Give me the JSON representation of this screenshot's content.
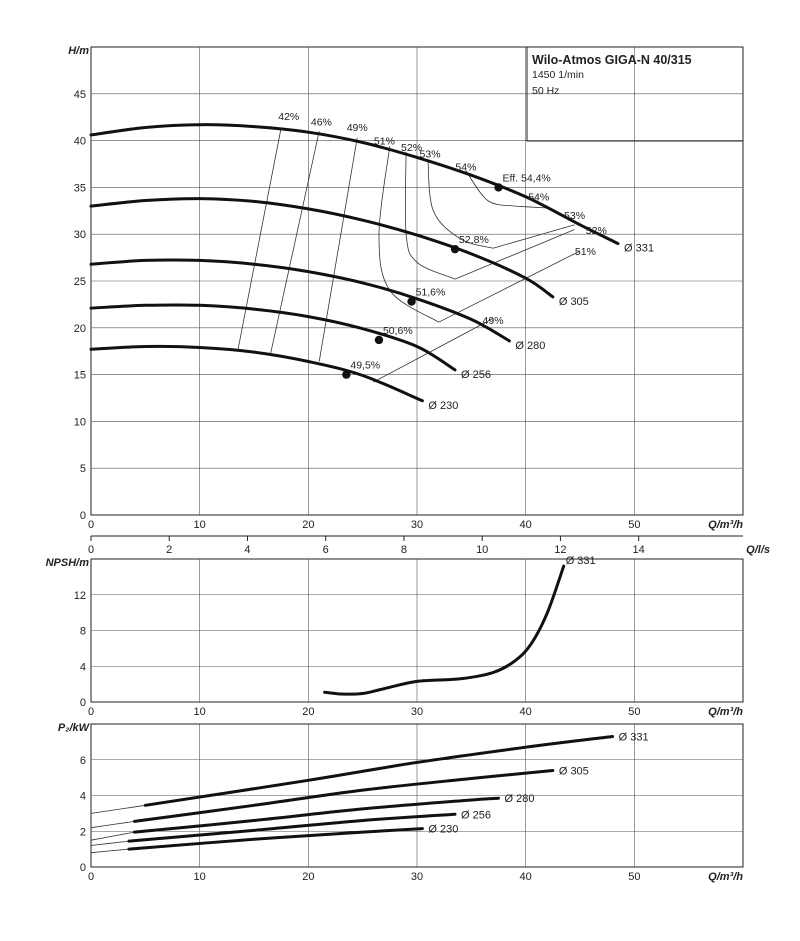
{
  "title_box": {
    "title": "Wilo-Atmos GIGA-N 40/315",
    "speed": "1450 1/min",
    "frequency": "50 Hz"
  },
  "axis_labels": {
    "head": "H/m",
    "flow": "Q/m³/h",
    "flow_ls": "Q/l/s",
    "npsh": "NPSH/m",
    "power": "P₂/kW"
  },
  "chart_data": [
    {
      "type": "line",
      "id": "head",
      "ylabel": "H/m",
      "xlabel": "Q/m³/h",
      "xlim": [
        0,
        60
      ],
      "ylim": [
        0,
        50
      ],
      "xticks": [
        0,
        10,
        20,
        30,
        40,
        50
      ],
      "yticks": [
        0,
        5,
        10,
        15,
        20,
        25,
        30,
        35,
        40,
        45
      ],
      "grid": true,
      "secondary_x": {
        "label": "Q/l/s",
        "lim": [
          0,
          16.667
        ],
        "ticks": [
          0,
          2,
          4,
          6,
          8,
          10,
          12,
          14
        ]
      },
      "series": [
        {
          "name": "Ø 331",
          "x": [
            0,
            5,
            10,
            15,
            20,
            25,
            30,
            35,
            40,
            45,
            48.5
          ],
          "y": [
            40.6,
            41.4,
            41.7,
            41.5,
            40.9,
            39.8,
            38.2,
            36.3,
            34.0,
            31.0,
            29.0
          ]
        },
        {
          "name": "Ø 305",
          "x": [
            0,
            5,
            10,
            15,
            20,
            25,
            30,
            35,
            40,
            42.5
          ],
          "y": [
            33.0,
            33.6,
            33.8,
            33.5,
            32.7,
            31.5,
            29.9,
            27.9,
            25.3,
            23.3
          ]
        },
        {
          "name": "Ø 280",
          "x": [
            0,
            5,
            10,
            15,
            20,
            25,
            30,
            35,
            38.5
          ],
          "y": [
            26.8,
            27.2,
            27.2,
            26.8,
            26.0,
            24.8,
            23.1,
            20.9,
            18.6
          ]
        },
        {
          "name": "Ø 256",
          "x": [
            0,
            5,
            10,
            15,
            20,
            25,
            30,
            33.5
          ],
          "y": [
            22.1,
            22.4,
            22.4,
            22.0,
            21.2,
            19.9,
            18.0,
            15.5
          ]
        },
        {
          "name": "Ø 230",
          "x": [
            0,
            5,
            10,
            15,
            20,
            25,
            30.5
          ],
          "y": [
            17.7,
            18.0,
            17.9,
            17.4,
            16.4,
            14.9,
            12.2
          ]
        }
      ],
      "best_efficiency_points": [
        {
          "label": "Eff. 54,4%",
          "x": 37.5,
          "y": 35.0
        },
        {
          "label": "52,8%",
          "x": 33.5,
          "y": 28.4
        },
        {
          "label": "51,6%",
          "x": 29.5,
          "y": 22.8
        },
        {
          "label": "50,6%",
          "x": 26.5,
          "y": 18.7
        },
        {
          "label": "49,5%",
          "x": 23.5,
          "y": 15.0
        }
      ],
      "efficiency_lines": [
        {
          "label": "42%",
          "x": [
            17.5,
            13.5
          ],
          "y": [
            41.4,
            17.5
          ]
        },
        {
          "label": "46%",
          "x": [
            21,
            16.5
          ],
          "y": [
            41.0,
            17.1
          ]
        },
        {
          "label": "49%",
          "x": [
            24.5,
            21
          ],
          "y": [
            40.3,
            16.4
          ]
        },
        {
          "label": "51%",
          "x": [
            27.5,
            26.5,
            27.5,
            32
          ],
          "y": [
            39.4,
            30,
            24,
            20.6
          ]
        },
        {
          "label": "52%",
          "x": [
            29,
            29,
            30,
            33.5
          ],
          "y": [
            38.8,
            30,
            27,
            25.2
          ]
        },
        {
          "label": "53%",
          "x": [
            31,
            31.5,
            34,
            37
          ],
          "y": [
            38.0,
            32.5,
            29.5,
            28.5
          ]
        },
        {
          "label": "54%",
          "x": [
            34.5,
            36.5,
            39
          ],
          "y": [
            36.8,
            33.6,
            33.0
          ]
        },
        {
          "label": "54%",
          "x": [
            39,
            42
          ],
          "y": [
            33.0,
            32.8
          ]
        },
        {
          "label": "53%",
          "x": [
            37,
            44.5
          ],
          "y": [
            28.5,
            31.0
          ]
        },
        {
          "label": "52%",
          "x": [
            33.5,
            44.5
          ],
          "y": [
            25.2,
            30.5
          ]
        },
        {
          "label": "51%",
          "x": [
            32,
            45
          ],
          "y": [
            20.6,
            28.2
          ]
        },
        {
          "label": "49%",
          "x": [
            26,
            37
          ],
          "y": [
            14.2,
            21.0
          ]
        }
      ],
      "efficiency_label_positions": [
        {
          "text": "42%",
          "x": 18.2,
          "y": 42.2
        },
        {
          "text": "46%",
          "x": 21.2,
          "y": 41.6
        },
        {
          "text": "49%",
          "x": 24.5,
          "y": 41.0
        },
        {
          "text": "51%",
          "x": 27.0,
          "y": 39.6
        },
        {
          "text": "52%",
          "x": 29.5,
          "y": 38.9
        },
        {
          "text": "53%",
          "x": 31.2,
          "y": 38.2
        },
        {
          "text": "54%",
          "x": 34.5,
          "y": 36.8
        },
        {
          "text": "54%",
          "x": 41.2,
          "y": 33.6
        },
        {
          "text": "53%",
          "x": 44.5,
          "y": 31.6
        },
        {
          "text": "52%",
          "x": 46.5,
          "y": 30.0
        },
        {
          "text": "51%",
          "x": 45.5,
          "y": 27.8
        },
        {
          "text": "49%",
          "x": 37.0,
          "y": 20.4
        }
      ]
    },
    {
      "type": "line",
      "id": "npsh",
      "ylabel": "NPSH/m",
      "xlabel": "Q/m³/h",
      "xlim": [
        0,
        60
      ],
      "ylim": [
        0,
        16
      ],
      "xticks": [
        0,
        10,
        20,
        30,
        40,
        50
      ],
      "yticks": [
        0,
        4,
        8,
        12
      ],
      "grid": true,
      "series": [
        {
          "name": "Ø 331",
          "x": [
            21.5,
            23,
            25,
            27,
            30,
            34,
            37,
            39,
            40.5,
            42,
            43.5
          ],
          "y": [
            1.1,
            0.9,
            0.95,
            1.5,
            2.3,
            2.6,
            3.3,
            4.6,
            6.5,
            10.0,
            15.2
          ]
        }
      ]
    },
    {
      "type": "line",
      "id": "power",
      "ylabel": "P₂/kW",
      "xlabel": "Q/m³/h",
      "xlim": [
        0,
        60
      ],
      "ylim": [
        0,
        8
      ],
      "xticks": [
        0,
        10,
        20,
        30,
        40,
        50
      ],
      "yticks": [
        0,
        2,
        4,
        6
      ],
      "grid": true,
      "series": [
        {
          "name": "Ø 331",
          "x": [
            0,
            5,
            20,
            30,
            40,
            48
          ],
          "y": [
            3.0,
            3.45,
            4.85,
            5.85,
            6.7,
            7.3
          ]
        },
        {
          "name": "Ø 305",
          "x": [
            0,
            4,
            15,
            25,
            35,
            42.5
          ],
          "y": [
            2.2,
            2.55,
            3.45,
            4.3,
            4.95,
            5.4
          ]
        },
        {
          "name": "Ø 280",
          "x": [
            0,
            4,
            15,
            25,
            35,
            37.5
          ],
          "y": [
            1.5,
            1.95,
            2.6,
            3.25,
            3.75,
            3.85
          ]
        },
        {
          "name": "Ø 256",
          "x": [
            0,
            3.5,
            15,
            25,
            33.5
          ],
          "y": [
            1.2,
            1.45,
            2.05,
            2.6,
            2.95
          ]
        },
        {
          "name": "Ø 230",
          "x": [
            0,
            3.5,
            15,
            25,
            30.5
          ],
          "y": [
            0.8,
            1.0,
            1.55,
            1.95,
            2.15
          ]
        }
      ]
    }
  ]
}
